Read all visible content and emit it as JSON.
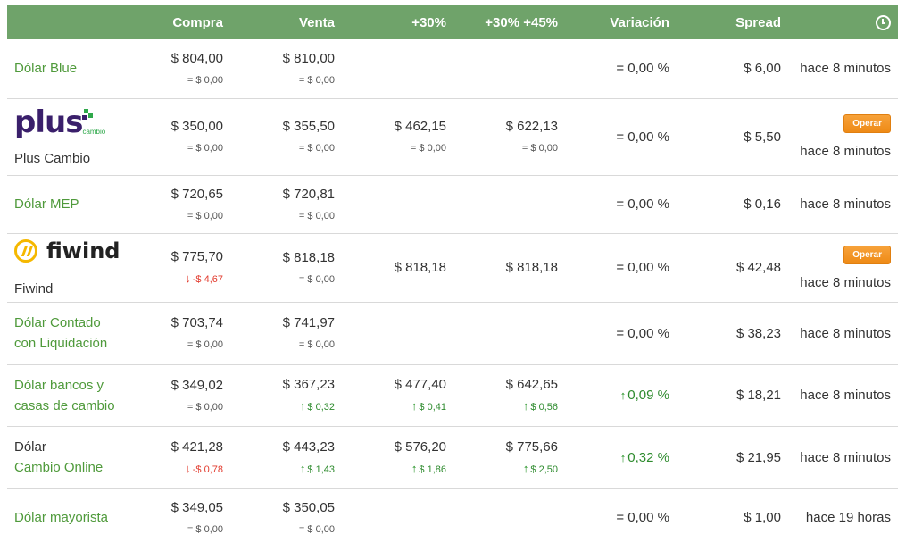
{
  "header": {
    "compra": "Compra",
    "venta": "Venta",
    "p30": "+30%",
    "p30_45": "+30% +45%",
    "variacion": "Variación",
    "spread": "Spread"
  },
  "icons": {
    "clock": "clock-icon",
    "arrow_up": "arrow-up-icon",
    "arrow_down": "arrow-down-icon"
  },
  "colors": {
    "header_bg": "#6fa36a",
    "link": "#4f9a3b",
    "down": "#e23b2e",
    "up": "#2e8b2e",
    "button": "#f0901e"
  },
  "rows": [
    {
      "name": "Dólar Blue",
      "compra": "$ 804,00",
      "compra_var": "= $ 0,00",
      "venta": "$ 810,00",
      "venta_var": "= $ 0,00",
      "variacion": "= 0,00 %",
      "spread": "$ 6,00",
      "time": "hace 8 minutos"
    },
    {
      "name": "Plus Cambio",
      "logo_text": "plus",
      "logo_sub": "cambio",
      "compra": "$ 350,00",
      "compra_var": "= $ 0,00",
      "venta": "$ 355,50",
      "venta_var": "= $ 0,00",
      "p30": "$ 462,15",
      "p30_var": "= $ 0,00",
      "p30_45": "$ 622,13",
      "p30_45_var": "= $ 0,00",
      "variacion": "= 0,00 %",
      "spread": "$ 5,50",
      "button": "Operar",
      "time": "hace 8 minutos"
    },
    {
      "name": "Dólar MEP",
      "compra": "$ 720,65",
      "compra_var": "= $ 0,00",
      "venta": "$ 720,81",
      "venta_var": "= $ 0,00",
      "variacion": "= 0,00 %",
      "spread": "$ 0,16",
      "time": "hace 8 minutos"
    },
    {
      "name": "Fiwind",
      "logo_text": "fiwind",
      "compra": "$ 775,70",
      "compra_var": "-$ 4,67",
      "venta": "$ 818,18",
      "venta_var": "= $ 0,00",
      "p30": "$ 818,18",
      "p30_45": "$ 818,18",
      "variacion": "= 0,00 %",
      "spread": "$ 42,48",
      "button": "Operar",
      "time": "hace 8 minutos"
    },
    {
      "name_line1": "Dólar Contado",
      "name_line2": "con Liquidación",
      "compra": "$ 703,74",
      "compra_var": "= $ 0,00",
      "venta": "$ 741,97",
      "venta_var": "= $ 0,00",
      "variacion": "= 0,00 %",
      "spread": "$ 38,23",
      "time": "hace 8 minutos"
    },
    {
      "name_line1": "Dólar bancos y",
      "name_line2": "casas de cambio",
      "compra": "$ 349,02",
      "compra_var": "= $ 0,00",
      "venta": "$ 367,23",
      "venta_var": "$ 0,32",
      "p30": "$ 477,40",
      "p30_var": "$ 0,41",
      "p30_45": "$ 642,65",
      "p30_45_var": "$ 0,56",
      "variacion": "0,09 %",
      "spread": "$ 18,21",
      "time": "hace 8 minutos"
    },
    {
      "name_line1": "Dólar",
      "name_line2": "Cambio Online",
      "compra": "$ 421,28",
      "compra_var": "-$ 0,78",
      "venta": "$ 443,23",
      "venta_var": "$ 1,43",
      "p30": "$ 576,20",
      "p30_var": "$ 1,86",
      "p30_45": "$ 775,66",
      "p30_45_var": "$ 2,50",
      "variacion": "0,32 %",
      "spread": "$ 21,95",
      "time": "hace 8 minutos"
    },
    {
      "name": "Dólar mayorista",
      "compra": "$ 349,05",
      "compra_var": "= $ 0,00",
      "venta": "$ 350,05",
      "venta_var": "= $ 0,00",
      "variacion": "= 0,00 %",
      "spread": "$ 1,00",
      "time": "hace 19 horas"
    }
  ]
}
